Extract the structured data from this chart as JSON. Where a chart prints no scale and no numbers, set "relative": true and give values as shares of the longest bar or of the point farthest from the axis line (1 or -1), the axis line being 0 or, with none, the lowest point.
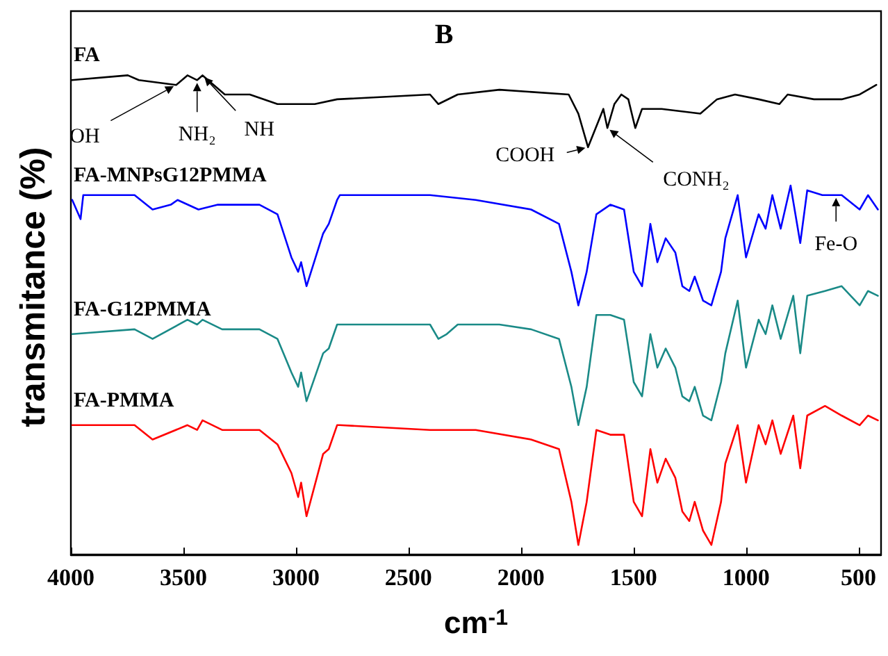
{
  "chart_data": {
    "type": "line",
    "title": "B",
    "xlabel": "cm$^{-1}$",
    "ylabel": "transmitance (%)",
    "relative": true,
    "xlim": [
      4000,
      400
    ],
    "xticks": [
      4000,
      3500,
      3000,
      2500,
      2000,
      1500,
      1000,
      500
    ],
    "grid": false,
    "legend": false,
    "marker": "none",
    "line_style": "solid",
    "series": [
      {
        "name": "FA",
        "color": "#000000",
        "x": [
          3996,
          3747,
          3698,
          3532,
          3482,
          3439,
          3415,
          3316,
          3205,
          3082,
          2916,
          2817,
          2404,
          2367,
          2281,
          2096,
          1788,
          1745,
          1702,
          1634,
          1616,
          1585,
          1554,
          1523,
          1492,
          1462,
          1375,
          1203,
          1129,
          1049,
          944,
          852,
          815,
          698,
          575,
          495,
          421
        ],
        "values": [
          0.99,
          1.0,
          0.99,
          0.98,
          1.0,
          0.99,
          1.0,
          0.96,
          0.96,
          0.94,
          0.94,
          0.95,
          0.96,
          0.94,
          0.96,
          0.97,
          0.96,
          0.92,
          0.85,
          0.93,
          0.89,
          0.94,
          0.96,
          0.95,
          0.89,
          0.93,
          0.93,
          0.92,
          0.95,
          0.96,
          0.95,
          0.94,
          0.96,
          0.95,
          0.95,
          0.96,
          0.98
        ]
      },
      {
        "name": "FA-MNPsG12PMMA",
        "color": "#0000ff",
        "x": [
          3994,
          3957,
          3945,
          3717,
          3637,
          3556,
          3526,
          3433,
          3347,
          3162,
          3082,
          3020,
          2990,
          2977,
          2953,
          2879,
          2854,
          2817,
          2805,
          2404,
          2201,
          1955,
          1831,
          1776,
          1745,
          1708,
          1665,
          1603,
          1542,
          1499,
          1462,
          1425,
          1394,
          1357,
          1314,
          1283,
          1252,
          1228,
          1191,
          1154,
          1111,
          1092,
          1037,
          1000,
          944,
          913,
          883,
          846,
          802,
          759,
          728,
          661,
          575,
          495,
          458,
          414
        ],
        "values": [
          0.74,
          0.7,
          0.75,
          0.75,
          0.72,
          0.73,
          0.74,
          0.72,
          0.73,
          0.73,
          0.71,
          0.62,
          0.59,
          0.61,
          0.56,
          0.67,
          0.69,
          0.74,
          0.75,
          0.75,
          0.74,
          0.72,
          0.69,
          0.59,
          0.52,
          0.59,
          0.71,
          0.73,
          0.72,
          0.59,
          0.56,
          0.69,
          0.61,
          0.66,
          0.63,
          0.56,
          0.55,
          0.58,
          0.53,
          0.52,
          0.59,
          0.66,
          0.75,
          0.62,
          0.71,
          0.68,
          0.75,
          0.68,
          0.77,
          0.65,
          0.76,
          0.75,
          0.75,
          0.72,
          0.75,
          0.72
        ]
      },
      {
        "name": "FA-G12PMMA",
        "color": "#1a8a87",
        "x": [
          3994,
          3717,
          3637,
          3482,
          3439,
          3415,
          3328,
          3162,
          3082,
          3020,
          2990,
          2977,
          2953,
          2879,
          2854,
          2817,
          2404,
          2367,
          2330,
          2281,
          2096,
          1955,
          1831,
          1776,
          1745,
          1708,
          1665,
          1603,
          1542,
          1499,
          1462,
          1425,
          1394,
          1357,
          1314,
          1283,
          1252,
          1228,
          1191,
          1154,
          1111,
          1092,
          1037,
          1000,
          944,
          913,
          883,
          846,
          790,
          759,
          728,
          649,
          575,
          495,
          458,
          414
        ],
        "values": [
          0.46,
          0.47,
          0.45,
          0.49,
          0.48,
          0.49,
          0.47,
          0.47,
          0.45,
          0.38,
          0.35,
          0.38,
          0.32,
          0.42,
          0.43,
          0.48,
          0.48,
          0.45,
          0.46,
          0.48,
          0.48,
          0.47,
          0.45,
          0.35,
          0.27,
          0.35,
          0.5,
          0.5,
          0.49,
          0.36,
          0.33,
          0.46,
          0.39,
          0.43,
          0.39,
          0.33,
          0.32,
          0.35,
          0.29,
          0.28,
          0.36,
          0.42,
          0.53,
          0.39,
          0.49,
          0.46,
          0.52,
          0.45,
          0.54,
          0.42,
          0.54,
          0.55,
          0.56,
          0.52,
          0.55,
          0.54
        ]
      },
      {
        "name": "FA-PMMA",
        "color": "#ff0000",
        "x": [
          3994,
          3717,
          3637,
          3482,
          3439,
          3415,
          3328,
          3162,
          3082,
          3020,
          2990,
          2977,
          2953,
          2879,
          2854,
          2817,
          2805,
          2404,
          2201,
          1955,
          1831,
          1776,
          1745,
          1708,
          1665,
          1603,
          1542,
          1499,
          1462,
          1425,
          1394,
          1357,
          1314,
          1283,
          1252,
          1228,
          1191,
          1154,
          1111,
          1092,
          1037,
          1000,
          944,
          913,
          883,
          846,
          790,
          759,
          728,
          649,
          575,
          495,
          458,
          414
        ],
        "values": [
          0.27,
          0.27,
          0.24,
          0.27,
          0.26,
          0.28,
          0.26,
          0.26,
          0.23,
          0.17,
          0.12,
          0.15,
          0.08,
          0.21,
          0.22,
          0.27,
          0.27,
          0.26,
          0.26,
          0.24,
          0.22,
          0.11,
          0.02,
          0.11,
          0.26,
          0.25,
          0.25,
          0.11,
          0.08,
          0.22,
          0.15,
          0.2,
          0.16,
          0.09,
          0.07,
          0.11,
          0.05,
          0.02,
          0.11,
          0.19,
          0.27,
          0.15,
          0.27,
          0.23,
          0.28,
          0.21,
          0.29,
          0.18,
          0.29,
          0.31,
          0.29,
          0.27,
          0.29,
          0.28
        ]
      }
    ],
    "annotations": [
      {
        "text": "OH",
        "x": 3532,
        "y": 0.98
      },
      {
        "text": "NH₂",
        "x": 3439,
        "y": 0.99
      },
      {
        "text": "NH",
        "x": 3415,
        "y": 1.0
      },
      {
        "text": "COOH",
        "x": 1702,
        "y": 0.85
      },
      {
        "text": "CONH₂",
        "x": 1616,
        "y": 0.89
      },
      {
        "text": "Fe-O",
        "x": 600,
        "y": 0.75
      }
    ]
  }
}
